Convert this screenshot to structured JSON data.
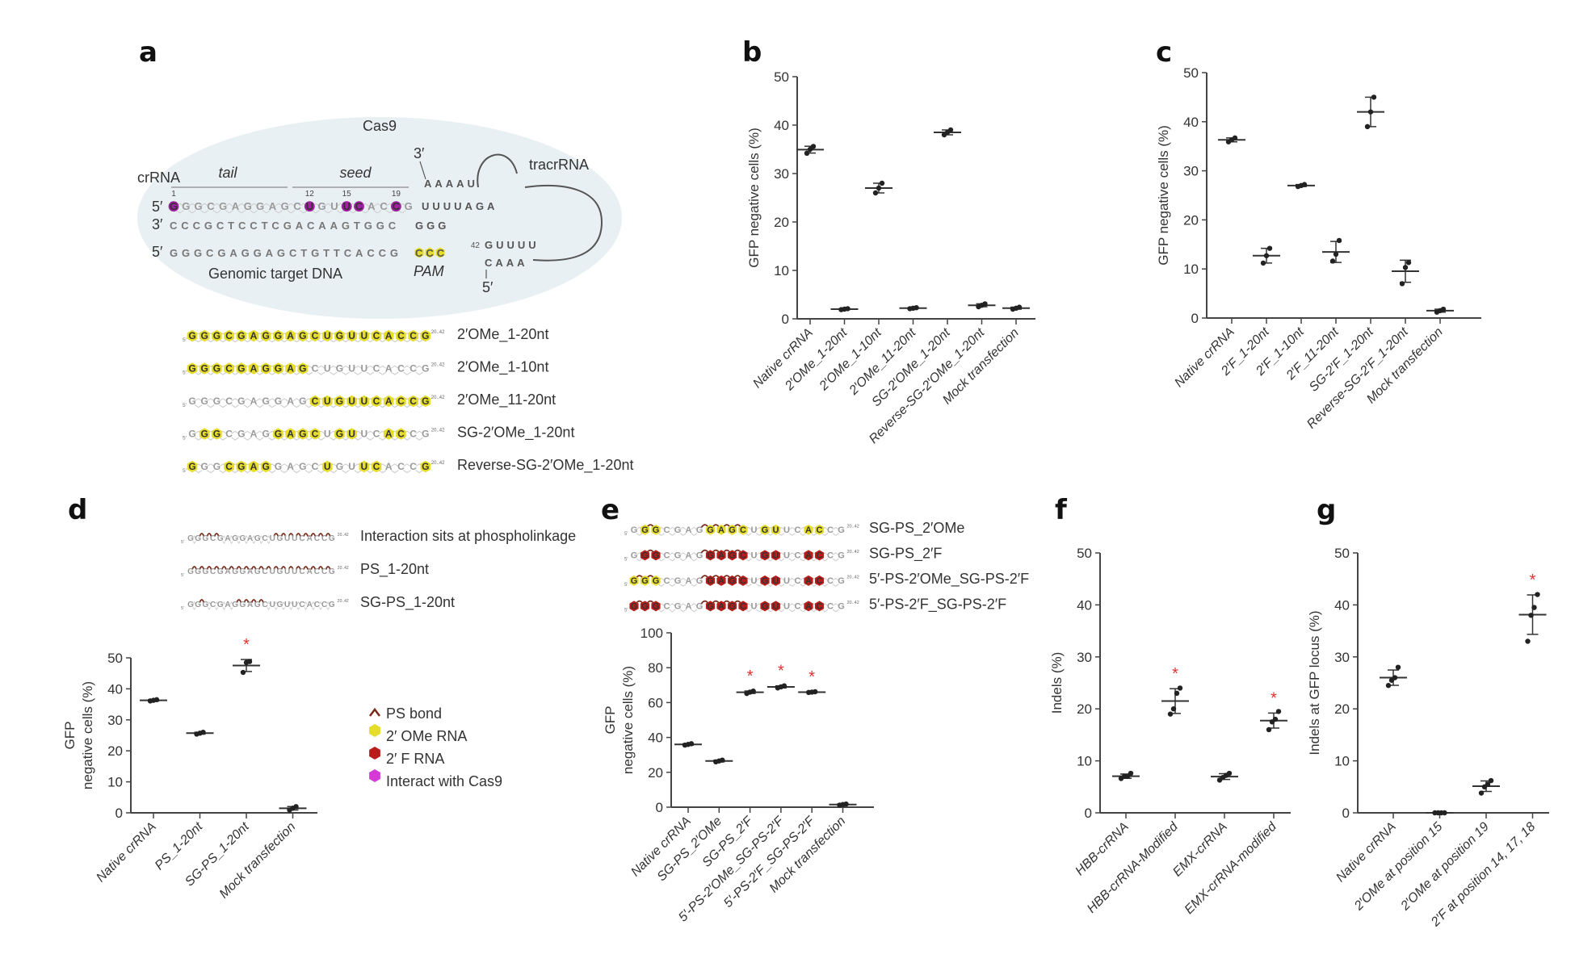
{
  "colors": {
    "ps_bond": "#7a2b1b",
    "ome": "#e6dc2a",
    "f": "#b81d1a",
    "cas9": "#d63ad6",
    "ellipse": "#e9f0f3",
    "star": "#e03030"
  },
  "panel_a": {
    "label": "a",
    "cas9": "Cas9",
    "crrna": "crRNA",
    "tail": "tail",
    "seed": "seed",
    "tracrrna": "tracrRNA",
    "three_prime": "3′",
    "five_prime": "5′",
    "five_prime_bottom": "5′",
    "genomic": "Genomic target DNA",
    "pam": "PAM",
    "crrna_seq": "GGGCGAGGAGCUGUUCACCG",
    "crrna_ext": "UUUUAGA",
    "crrna_cas9_positions": [
      1,
      12,
      15,
      16,
      19
    ],
    "pos_labels": [
      "1",
      "12",
      "15",
      "19"
    ],
    "dna_top": "CCCGCTCCTCGACAAGTGGC",
    "dna_top_pam": "GGG",
    "dna_bottom": "GGGCGAGGAGCTGTTCACCG",
    "dna_bottom_pam": "CCC",
    "trac_stem_top": "AAAAU",
    "trac_lower": "GUUUU",
    "trac_lower2": "CAAA",
    "trac_num": "42",
    "variants": [
      {
        "name": "2′OMe_1-20nt",
        "seq": "GGGCGAGGAGCUGUUCACCG",
        "ome": [
          1,
          2,
          3,
          4,
          5,
          6,
          7,
          8,
          9,
          10,
          11,
          12,
          13,
          14,
          15,
          16,
          17,
          18,
          19,
          20
        ]
      },
      {
        "name": "2′OMe_1-10nt",
        "seq": "GGGCGAGGAGCUGUUCACCG",
        "ome": [
          1,
          2,
          3,
          4,
          5,
          6,
          7,
          8,
          9,
          10
        ]
      },
      {
        "name": "2′OMe_11-20nt",
        "seq": "GGGCGAGGAGCUGUUCACCG",
        "ome": [
          11,
          12,
          13,
          14,
          15,
          16,
          17,
          18,
          19,
          20
        ]
      },
      {
        "name": "SG-2′OMe_1-20nt",
        "seq": "GGGCGAGGAGCUGUUCACCG",
        "ome": [
          2,
          3,
          8,
          9,
          10,
          11,
          13,
          14,
          17,
          18
        ]
      },
      {
        "name": "Reverse-SG-2′OMe_1-20nt",
        "seq": "GGGCGAGGAGCUGUUCACCG",
        "ome": [
          1,
          4,
          5,
          6,
          7,
          12,
          15,
          16,
          20
        ]
      }
    ]
  },
  "panel_d": {
    "label": "d",
    "sequences": [
      {
        "name": "Interaction sits at phospholinkage",
        "seq": "GGGCGAGGAGCUGUUCACCG",
        "ps": [
          2,
          3,
          4,
          12,
          13,
          14,
          15,
          16,
          17,
          18,
          19
        ]
      },
      {
        "name": "PS_1-20nt",
        "seq": "GGGCGAGGAGCUGUUCACCG",
        "ps": [
          1,
          2,
          3,
          4,
          5,
          6,
          7,
          8,
          9,
          10,
          11,
          12,
          13,
          14,
          15,
          16,
          17,
          18,
          19
        ]
      },
      {
        "name": "SG-PS_1-20nt",
        "seq": "GGGCGAGGAGCUGUUCACCG",
        "ps": [
          2,
          7,
          8,
          9,
          10
        ]
      }
    ],
    "legend": [
      {
        "label": "PS bond",
        "icon": "ps-bond-icon"
      },
      {
        "label": "2′ OMe RNA",
        "icon": "ome-rna-icon"
      },
      {
        "label": "2′ F RNA",
        "icon": "f-rna-icon"
      },
      {
        "label": "Interact with Cas9",
        "icon": "cas9-interact-icon"
      }
    ]
  },
  "panel_e": {
    "label": "e",
    "sequences": [
      {
        "name": "SG-PS_2′OMe",
        "seq": "GGGCGAGGAGCUGUUCACCG",
        "ome": [
          2,
          3,
          8,
          9,
          10,
          11,
          13,
          14,
          17,
          18
        ],
        "f": [],
        "ps": [
          2,
          7,
          8,
          9,
          10
        ]
      },
      {
        "name": "SG-PS_2′F",
        "seq": "GGGCGAGGAGCUGUUCACCG",
        "ome": [],
        "f": [
          2,
          3,
          8,
          9,
          10,
          11,
          13,
          14,
          17,
          18
        ],
        "ps": [
          2,
          7,
          8,
          9,
          10
        ]
      },
      {
        "name": "5′-PS-2′OMe_SG-PS-2′F",
        "seq": "GGGCGAGGAGCUGUUCACCG",
        "ome": [
          1,
          2,
          3
        ],
        "f": [
          8,
          9,
          10,
          11,
          13,
          14,
          17,
          18
        ],
        "ps": [
          1,
          2,
          7,
          8,
          9,
          10
        ]
      },
      {
        "name": "5′-PS-2′F_SG-PS-2′F",
        "seq": "GGGCGAGGAGCUGUUCACCG",
        "ome": [],
        "f": [
          1,
          2,
          3,
          8,
          9,
          10,
          11,
          13,
          14,
          17,
          18
        ],
        "ps": [
          1,
          2,
          7,
          8,
          9,
          10
        ]
      }
    ]
  },
  "panel_f": {
    "label": "f"
  },
  "panel_g": {
    "label": "g"
  },
  "chart_data": [
    {
      "panel": "b",
      "type": "scatter",
      "ylabel": [
        "GFP negative cells (%)"
      ],
      "ylim": [
        0,
        50
      ],
      "yticks": [
        0,
        10,
        20,
        30,
        40,
        50
      ],
      "categories": [
        "Native crRNA",
        "2′OMe_1-20nt",
        "2′OMe_1-10nt",
        "2′OMe_11-20nt",
        "SG-2′OMe_1-20nt",
        "Reverse-SG-2′OMe_1-20nt",
        "Mock transfection"
      ],
      "points": [
        [
          34.2,
          35.0,
          35.6
        ],
        [
          1.9,
          2.0,
          2.1
        ],
        [
          26.0,
          27.0,
          28.0
        ],
        [
          2.1,
          2.2,
          2.3
        ],
        [
          38.0,
          38.5,
          39.0
        ],
        [
          2.5,
          2.8,
          3.1
        ],
        [
          2.0,
          2.2,
          2.4
        ]
      ],
      "significant": [
        false,
        false,
        false,
        false,
        false,
        false,
        false
      ]
    },
    {
      "panel": "c",
      "type": "scatter",
      "ylabel": [
        "GFP negative cells (%)"
      ],
      "ylim": [
        0,
        50
      ],
      "yticks": [
        0,
        10,
        20,
        30,
        40,
        50
      ],
      "categories": [
        "Native crRNA",
        "2′F_1-20nt",
        "2′F_1-10nt",
        "2′F_11-20nt",
        "SG-2′F_1-20nt",
        "Reverse-SG-2′F_1-20nt",
        "Mock transfection"
      ],
      "points": [
        [
          35.9,
          36.3,
          36.7
        ],
        [
          11.2,
          12.7,
          14.2
        ],
        [
          26.8,
          27.0,
          27.2
        ],
        [
          11.6,
          13.0,
          15.8
        ],
        [
          39.0,
          42.0,
          45.0
        ],
        [
          7.0,
          10.3,
          11.3
        ],
        [
          1.2,
          1.5,
          1.8
        ]
      ],
      "significant": [
        false,
        false,
        false,
        false,
        false,
        false,
        false
      ]
    },
    {
      "panel": "d",
      "type": "scatter",
      "ylabel": [
        "GFP",
        "negative cells (%)"
      ],
      "ylim": [
        0,
        50
      ],
      "yticks": [
        0,
        10,
        20,
        30,
        40,
        50
      ],
      "categories": [
        "Native crRNA",
        "PS_1-20nt",
        "SG-PS_1-20nt",
        "Mock transfection"
      ],
      "points": [
        [
          36.1,
          36.3,
          36.5
        ],
        [
          25.4,
          25.7,
          26.0
        ],
        [
          45.3,
          48.5,
          48.8
        ],
        [
          0.9,
          1.5,
          2.0
        ]
      ],
      "significant": [
        false,
        false,
        true,
        false
      ]
    },
    {
      "panel": "e",
      "type": "scatter",
      "ylabel": [
        "GFP",
        "negative cells (%)"
      ],
      "ylim": [
        0,
        100
      ],
      "yticks": [
        0,
        20,
        40,
        60,
        80,
        100
      ],
      "categories": [
        "Native crRNA",
        "SG-PS_2′OMe",
        "SG-PS_2′F",
        "5′-PS-2′OMe_SG-PS-2′F",
        "5′-PS-2′F_SG-PS-2′F",
        "Mock transfection"
      ],
      "points": [
        [
          35.6,
          36.0,
          36.4
        ],
        [
          26.0,
          26.5,
          27.0
        ],
        [
          65.2,
          66.0,
          66.6
        ],
        [
          68.4,
          69.0,
          69.6
        ],
        [
          65.8,
          66.0,
          66.2
        ],
        [
          1.2,
          1.5,
          1.8
        ]
      ],
      "significant": [
        false,
        false,
        true,
        true,
        true,
        false
      ]
    },
    {
      "panel": "f",
      "type": "scatter",
      "ylabel": [
        "Indels (%)"
      ],
      "ylim": [
        0,
        50
      ],
      "yticks": [
        0,
        10,
        20,
        30,
        40,
        50
      ],
      "categories": [
        "HBB-crRNA",
        "HBB-crRNA-Modified",
        "EMX-crRNA",
        "EMX-crRNA-modified"
      ],
      "points": [
        [
          6.6,
          7.0,
          7.0,
          7.6
        ],
        [
          19.0,
          20.0,
          23.0,
          24.0
        ],
        [
          6.3,
          6.8,
          7.2,
          7.6
        ],
        [
          16.0,
          17.5,
          18.0,
          19.5
        ]
      ],
      "significant": [
        false,
        true,
        false,
        true
      ]
    },
    {
      "panel": "g",
      "type": "scatter",
      "ylabel": [
        "Indels at GFP locus (%)"
      ],
      "ylim": [
        0,
        50
      ],
      "yticks": [
        0,
        10,
        20,
        30,
        40,
        50
      ],
      "categories": [
        "Native crRNA",
        "2′OMe at position 15",
        "2′OMe at position 19",
        "2′F at position 14, 17, 18"
      ],
      "points": [
        [
          24.5,
          25.5,
          26.0,
          28.0
        ],
        [
          0.0,
          0.0,
          0.0,
          0.0
        ],
        [
          3.8,
          5.0,
          5.5,
          6.2
        ],
        [
          33.0,
          38.0,
          39.5,
          42.0
        ]
      ],
      "significant": [
        false,
        false,
        false,
        true
      ]
    }
  ]
}
